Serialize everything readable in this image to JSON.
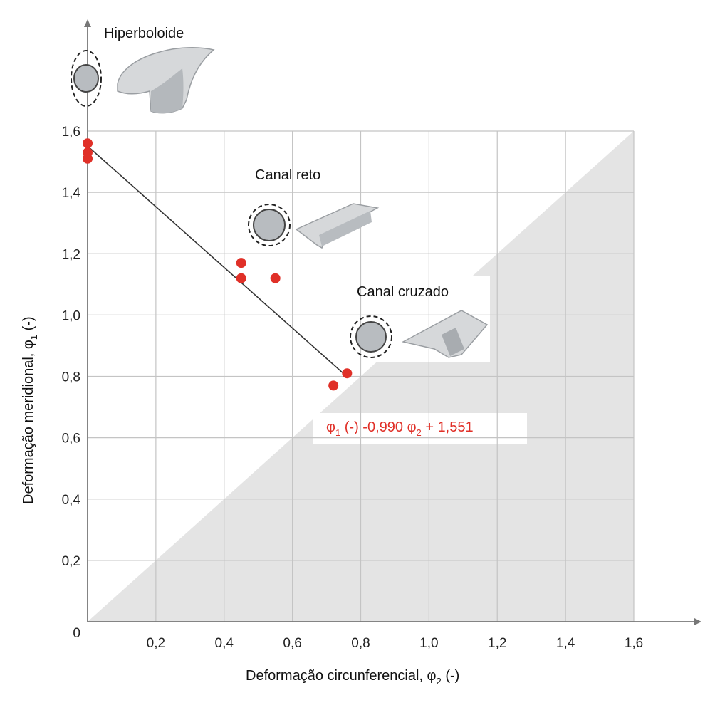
{
  "chart_data": {
    "type": "scatter",
    "xlabel_main": "Deformação circunferencial, φ",
    "xlabel_sub": "2",
    "xlabel_tail": " (-)",
    "ylabel_main": "Deformação meridional, φ",
    "ylabel_sub": "1",
    "ylabel_tail": " (-)",
    "xlim": [
      0,
      1.6
    ],
    "ylim": [
      0,
      1.6
    ],
    "x_ticks": [
      "0,2",
      "0,4",
      "0,6",
      "0,8",
      "1,0",
      "1,2",
      "1,4",
      "1,6"
    ],
    "x_tick_values": [
      0.2,
      0.4,
      0.6,
      0.8,
      1.0,
      1.2,
      1.4,
      1.6
    ],
    "y_ticks": [
      "0,2",
      "0,4",
      "0,6",
      "0,8",
      "1,0",
      "1,2",
      "1,4",
      "1,6"
    ],
    "y_tick_values": [
      0.2,
      0.4,
      0.6,
      0.8,
      1.0,
      1.2,
      1.4,
      1.6
    ],
    "origin_label": "0",
    "grid": true,
    "points": [
      {
        "x": 0.0,
        "y": 1.56
      },
      {
        "x": 0.0,
        "y": 1.53
      },
      {
        "x": 0.0,
        "y": 1.51
      },
      {
        "x": 0.45,
        "y": 1.17
      },
      {
        "x": 0.45,
        "y": 1.12
      },
      {
        "x": 0.55,
        "y": 1.12
      },
      {
        "x": 0.72,
        "y": 0.77
      },
      {
        "x": 0.76,
        "y": 0.81
      }
    ],
    "fit_line": {
      "x": [
        0.0,
        0.76
      ],
      "y": [
        1.551,
        0.799
      ]
    },
    "point_color": "#e03028",
    "region_color": "#e4e4e4",
    "annotations": {
      "hiperboloide": "Hiperboloide",
      "canal_reto": "Canal reto",
      "canal_cruzado": "Canal cruzado"
    },
    "equation": {
      "phi": "φ",
      "sub1": "1",
      "mid": " (-) -0,990 φ",
      "sub2": "2",
      "tail": " + 1,551"
    }
  }
}
